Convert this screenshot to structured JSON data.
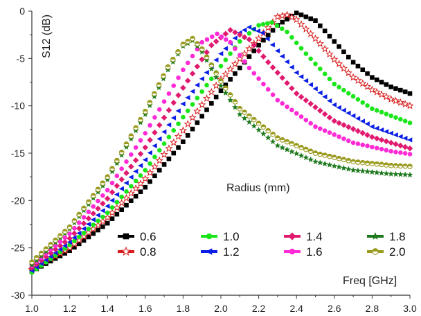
{
  "chart_data": {
    "type": "scatter",
    "title": "",
    "xlabel": "Freq [GHz]",
    "ylabel": "S12 (dB)",
    "legend_title": "Radius (mm)",
    "xlim": [
      1.0,
      3.0
    ],
    "ylim": [
      -30,
      0
    ],
    "x_ticks": [
      "1.0",
      "1.2",
      "1.4",
      "1.6",
      "1.8",
      "2.0",
      "2.2",
      "2.4",
      "2.6",
      "2.8",
      "3.0"
    ],
    "y_ticks": [
      "0",
      "-5",
      "-10",
      "-15",
      "-20",
      "-25",
      "-30"
    ],
    "grid": false,
    "legend_position": "lower-right",
    "series": [
      {
        "name": "0.6",
        "color": "#000000",
        "marker": "square",
        "points": [
          [
            1.0,
            -27.5
          ],
          [
            1.2,
            -25.3
          ],
          [
            1.4,
            -22.4
          ],
          [
            1.6,
            -18.6
          ],
          [
            1.8,
            -13.8
          ],
          [
            2.0,
            -8.4
          ],
          [
            2.2,
            -3.6
          ],
          [
            2.3,
            -1.5
          ],
          [
            2.4,
            -0.2
          ],
          [
            2.5,
            -1.0
          ],
          [
            2.6,
            -3.2
          ],
          [
            2.7,
            -5.4
          ],
          [
            2.8,
            -7.0
          ],
          [
            2.9,
            -8.0
          ],
          [
            3.0,
            -8.7
          ]
        ]
      },
      {
        "name": "0.8",
        "color": "#d81b1b",
        "marker": "star-open",
        "points": [
          [
            1.0,
            -27.3
          ],
          [
            1.2,
            -25.0
          ],
          [
            1.4,
            -21.8
          ],
          [
            1.6,
            -17.7
          ],
          [
            1.8,
            -12.6
          ],
          [
            2.0,
            -7.2
          ],
          [
            2.2,
            -2.9
          ],
          [
            2.3,
            -0.6
          ],
          [
            2.35,
            -0.4
          ],
          [
            2.4,
            -0.9
          ],
          [
            2.5,
            -2.9
          ],
          [
            2.6,
            -5.1
          ],
          [
            2.7,
            -7.0
          ],
          [
            2.8,
            -8.3
          ],
          [
            2.9,
            -9.3
          ],
          [
            3.0,
            -10.0
          ]
        ]
      },
      {
        "name": "1.0",
        "color": "#19e619",
        "marker": "circle",
        "points": [
          [
            1.0,
            -27.6
          ],
          [
            1.2,
            -24.7
          ],
          [
            1.4,
            -21.3
          ],
          [
            1.6,
            -16.8
          ],
          [
            1.8,
            -11.2
          ],
          [
            2.0,
            -5.8
          ],
          [
            2.1,
            -3.2
          ],
          [
            2.2,
            -1.5
          ],
          [
            2.27,
            -1.2
          ],
          [
            2.35,
            -2.2
          ],
          [
            2.45,
            -4.5
          ],
          [
            2.6,
            -7.7
          ],
          [
            2.8,
            -10.3
          ],
          [
            3.0,
            -11.8
          ]
        ]
      },
      {
        "name": "1.2",
        "color": "#0a1ee6",
        "marker": "triangle-left",
        "points": [
          [
            1.0,
            -27.4
          ],
          [
            1.2,
            -24.4
          ],
          [
            1.4,
            -20.6
          ],
          [
            1.6,
            -15.7
          ],
          [
            1.8,
            -9.8
          ],
          [
            2.0,
            -4.5
          ],
          [
            2.1,
            -2.3
          ],
          [
            2.15,
            -1.7
          ],
          [
            2.22,
            -2.3
          ],
          [
            2.3,
            -4.2
          ],
          [
            2.4,
            -6.5
          ],
          [
            2.6,
            -9.9
          ],
          [
            2.8,
            -12.2
          ],
          [
            3.0,
            -13.6
          ]
        ]
      },
      {
        "name": "1.4",
        "color": "#e01a6f",
        "marker": "diamond",
        "points": [
          [
            1.0,
            -27.1
          ],
          [
            1.2,
            -24.0
          ],
          [
            1.4,
            -19.8
          ],
          [
            1.6,
            -14.4
          ],
          [
            1.8,
            -8.1
          ],
          [
            1.95,
            -3.6
          ],
          [
            2.05,
            -2.0
          ],
          [
            2.15,
            -3.0
          ],
          [
            2.25,
            -5.4
          ],
          [
            2.4,
            -8.7
          ],
          [
            2.6,
            -11.6
          ],
          [
            2.8,
            -13.3
          ],
          [
            3.0,
            -14.5
          ]
        ]
      },
      {
        "name": "1.6",
        "color": "#ff2bd6",
        "marker": "circle",
        "points": [
          [
            1.0,
            -26.9
          ],
          [
            1.2,
            -23.5
          ],
          [
            1.4,
            -18.9
          ],
          [
            1.6,
            -12.9
          ],
          [
            1.8,
            -6.2
          ],
          [
            1.9,
            -3.3
          ],
          [
            1.98,
            -2.4
          ],
          [
            2.05,
            -3.3
          ],
          [
            2.15,
            -6.0
          ],
          [
            2.3,
            -9.4
          ],
          [
            2.5,
            -12.2
          ],
          [
            2.7,
            -13.9
          ],
          [
            2.9,
            -14.8
          ],
          [
            3.0,
            -15.1
          ]
        ]
      },
      {
        "name": "1.8",
        "color": "#1f7a1f",
        "marker": "star",
        "points": [
          [
            1.0,
            -26.8
          ],
          [
            1.2,
            -23.0
          ],
          [
            1.4,
            -17.8
          ],
          [
            1.6,
            -10.9
          ],
          [
            1.72,
            -6.2
          ],
          [
            1.8,
            -3.7
          ],
          [
            1.85,
            -3.1
          ],
          [
            1.9,
            -4.3
          ],
          [
            2.0,
            -7.9
          ],
          [
            2.1,
            -10.9
          ],
          [
            2.3,
            -14.2
          ],
          [
            2.5,
            -15.9
          ],
          [
            2.7,
            -16.8
          ],
          [
            2.9,
            -17.2
          ],
          [
            3.0,
            -17.3
          ]
        ]
      },
      {
        "name": "2.0",
        "color": "#9a9a1f",
        "marker": "circle-half",
        "points": [
          [
            1.0,
            -26.5
          ],
          [
            1.2,
            -22.8
          ],
          [
            1.4,
            -17.5
          ],
          [
            1.6,
            -10.6
          ],
          [
            1.72,
            -5.9
          ],
          [
            1.8,
            -3.5
          ],
          [
            1.85,
            -2.9
          ],
          [
            1.9,
            -4.0
          ],
          [
            2.0,
            -7.4
          ],
          [
            2.1,
            -10.3
          ],
          [
            2.3,
            -13.4
          ],
          [
            2.5,
            -15.0
          ],
          [
            2.7,
            -15.9
          ],
          [
            2.9,
            -16.3
          ],
          [
            3.0,
            -16.4
          ]
        ]
      }
    ]
  }
}
